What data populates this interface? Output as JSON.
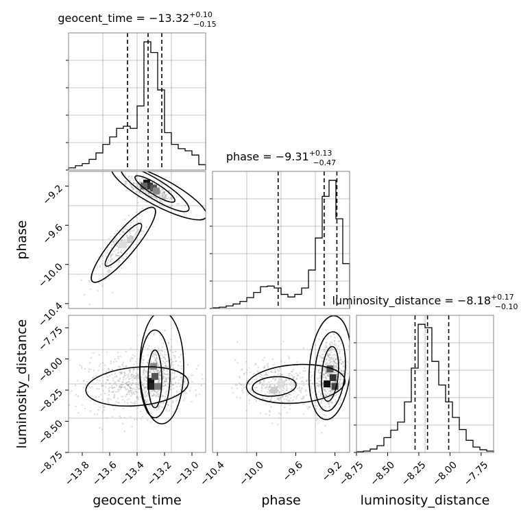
{
  "chart_data": {
    "type": "corner",
    "parameters": [
      "geocent_time",
      "phase",
      "luminosity_distance"
    ],
    "titles": [
      {
        "param": "geocent_time",
        "prefix": "geocent_time = −13.32",
        "plus": "+0.10",
        "minus": "−0.15"
      },
      {
        "param": "phase",
        "prefix": "phase = −9.31",
        "plus": "+0.13",
        "minus": "−0.47"
      },
      {
        "param": "luminosity_distance",
        "prefix": "luminosity_distance = −8.18",
        "plus": "+0.17",
        "minus": "−0.10"
      }
    ],
    "axis_labels": {
      "x": [
        "geocent_time",
        "phase",
        "luminosity_distance"
      ],
      "y_phase": "phase",
      "y_luminosity_distance": "luminosity_distance"
    },
    "ticks": {
      "geocent_time": [
        "−13.8",
        "−13.6",
        "−13.4",
        "−13.2",
        "−13.0"
      ],
      "phase": [
        "−10.4",
        "−10.0",
        "−9.6",
        "−9.2"
      ],
      "luminosity_distance": [
        "−8.75",
        "−8.50",
        "−8.25",
        "−8.00",
        "−7.75"
      ]
    },
    "ticks_numeric": {
      "geocent_time": [
        -13.8,
        -13.6,
        -13.4,
        -13.2,
        -13.0
      ],
      "phase": [
        -10.4,
        -10.0,
        -9.6,
        -9.2
      ],
      "luminosity_distance": [
        -8.75,
        -8.5,
        -8.25,
        -8.0,
        -7.75
      ]
    },
    "ranges": {
      "geocent_time": [
        -13.9,
        -12.9
      ],
      "phase": [
        -10.45,
        -9.05
      ],
      "luminosity_distance": [
        -8.75,
        -7.65
      ]
    },
    "histograms": {
      "geocent_time": {
        "edges": [
          -13.9,
          -13.85,
          -13.8,
          -13.75,
          -13.7,
          -13.65,
          -13.6,
          -13.55,
          -13.5,
          -13.45,
          -13.4,
          -13.35,
          -13.3,
          -13.25,
          -13.2,
          -13.15,
          -13.1,
          -13.05,
          -13.0,
          -12.95,
          -12.9
        ],
        "counts": [
          2,
          4,
          6,
          10,
          16,
          24,
          31,
          39,
          41,
          39,
          60,
          120,
          110,
          75,
          35,
          24,
          20,
          18,
          14,
          5
        ]
      },
      "phase": {
        "edges": [
          -10.45,
          -10.38,
          -10.31,
          -10.24,
          -10.17,
          -10.1,
          -10.03,
          -9.96,
          -9.89,
          -9.82,
          -9.75,
          -9.68,
          -9.61,
          -9.54,
          -9.47,
          -9.4,
          -9.33,
          -9.26,
          -9.19,
          -9.12,
          -9.05
        ],
        "counts": [
          1,
          2,
          4,
          7,
          11,
          17,
          25,
          34,
          35,
          32,
          22,
          18,
          22,
          32,
          60,
          110,
          175,
          200,
          140,
          70
        ]
      },
      "luminosity_distance": {
        "edges": [
          -8.75,
          -8.695,
          -8.64,
          -8.585,
          -8.53,
          -8.475,
          -8.42,
          -8.365,
          -8.31,
          -8.255,
          -8.2,
          -8.145,
          -8.09,
          -8.035,
          -7.98,
          -7.925,
          -7.87,
          -7.815,
          -7.76,
          -7.705,
          -7.65
        ],
        "counts": [
          1,
          2,
          5,
          10,
          22,
          33,
          45,
          75,
          125,
          190,
          185,
          135,
          100,
          75,
          52,
          34,
          18,
          8,
          4,
          2
        ]
      }
    },
    "quantiles": {
      "geocent_time": [
        -13.47,
        -13.32,
        -13.22
      ],
      "phase": [
        -9.78,
        -9.31,
        -9.18
      ],
      "luminosity_distance": [
        -8.28,
        -8.18,
        -8.01
      ]
    }
  }
}
